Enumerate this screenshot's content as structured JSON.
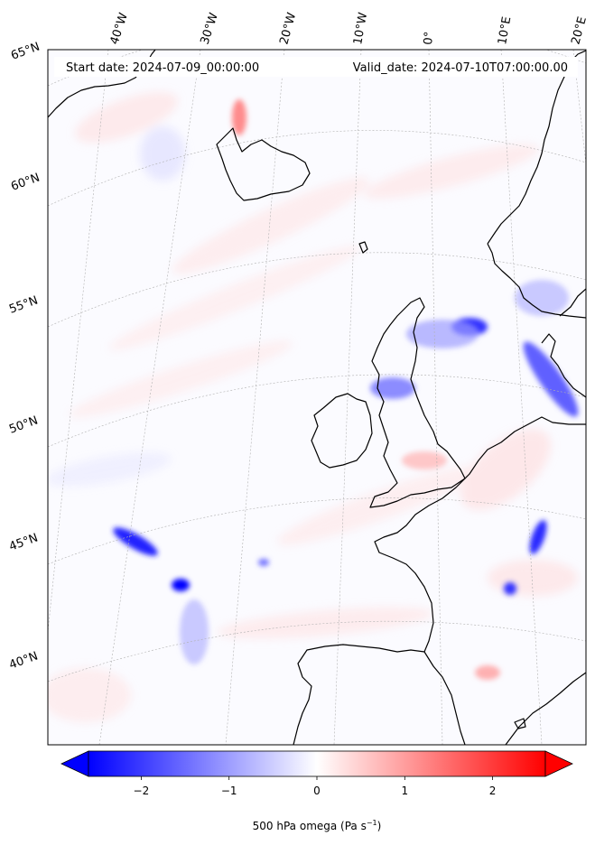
{
  "header": {
    "start_date": "Start date: 2024-07-09_00:00:00",
    "valid_date": "Valid_date: 2024-07-10T07:00:00.00"
  },
  "longitude_labels": [
    "40°W",
    "30°W",
    "20°W",
    "10°W",
    "0°",
    "10°E",
    "20°E"
  ],
  "latitude_labels": [
    "65°N",
    "60°N",
    "55°N",
    "50°N",
    "45°N",
    "40°N"
  ],
  "colorbar": {
    "ticks": [
      -2,
      -1,
      0,
      1,
      2
    ],
    "tick_labels": [
      "−2",
      "−1",
      "0",
      "1",
      "2"
    ],
    "range": [
      -2.6,
      2.6
    ],
    "extend": "both",
    "label_main": "500 hPa omega (Pa s",
    "label_sup": "−1",
    "label_close": ")",
    "colors": {
      "negative": "#0000ff",
      "zero": "#ffffff",
      "positive": "#ff0000"
    }
  },
  "map": {
    "projection": "rotated conic",
    "region": "North Atlantic and Western Europe",
    "coastline_color": "#000000",
    "gridline_color": "#b0b0b0"
  }
}
